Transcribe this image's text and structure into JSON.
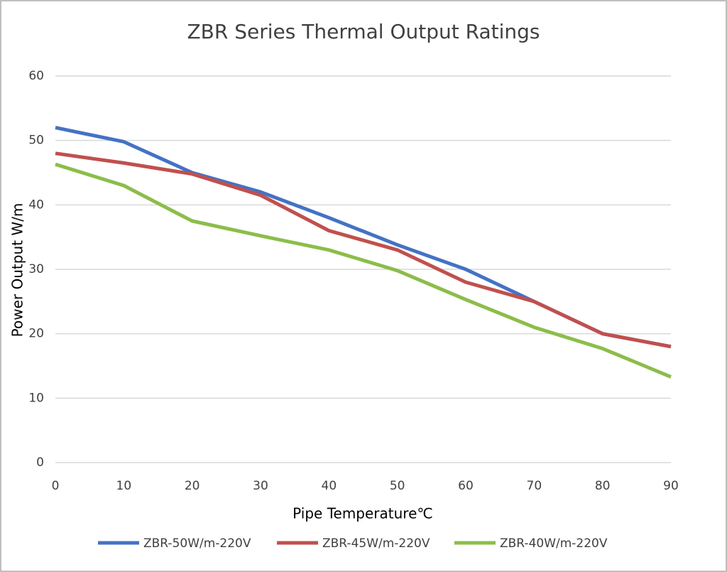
{
  "chart_data": {
    "type": "line",
    "title": "ZBR Series Thermal Output Ratings",
    "x_label": "Pipe Temperature℃",
    "y_label": "Power Output W/m",
    "x": [
      0,
      10,
      20,
      30,
      40,
      50,
      60,
      70,
      80,
      90
    ],
    "xlim": [
      0,
      90
    ],
    "xticks": [
      0,
      10,
      20,
      30,
      40,
      50,
      60,
      70,
      80,
      90
    ],
    "ylim": [
      0,
      60
    ],
    "yticks": [
      0,
      10,
      20,
      30,
      40,
      50,
      60
    ],
    "grid": true,
    "legend": "bottom",
    "series": [
      {
        "name": "ZBR-50W/m-220V",
        "color": "#4472c4",
        "values": [
          52,
          49.8,
          45,
          42,
          38,
          33.8,
          30,
          25,
          20,
          18
        ]
      },
      {
        "name": "ZBR-45W/m-220V",
        "color": "#c0504d",
        "values": [
          48,
          46.5,
          44.8,
          41.5,
          36,
          33,
          28,
          25,
          20,
          18
        ]
      },
      {
        "name": "ZBR-40W/m-220V",
        "color": "#8cbd4a",
        "values": [
          46.3,
          43,
          37.5,
          35.2,
          33,
          29.8,
          25.3,
          21,
          17.7,
          13.3
        ]
      }
    ]
  }
}
